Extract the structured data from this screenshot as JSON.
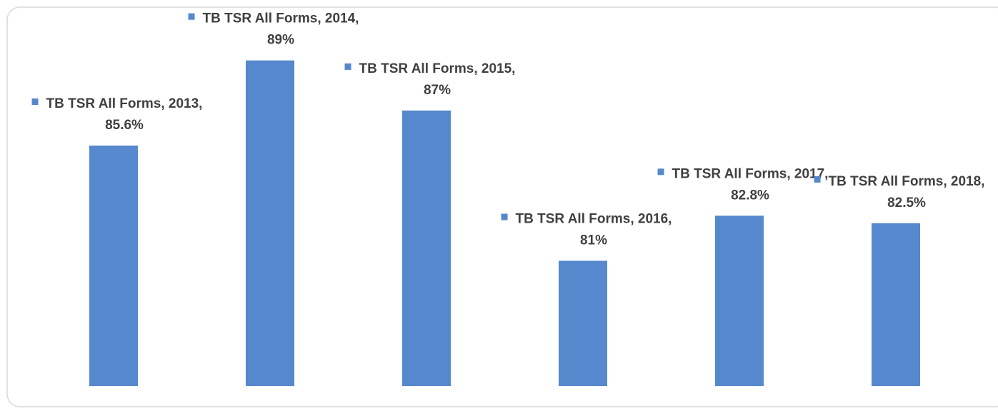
{
  "chart_data": {
    "type": "bar",
    "series": [
      {
        "name": "TB TSR All Forms",
        "color": "#5588cc",
        "values": [
          85.6,
          89,
          87,
          81,
          82.8,
          82.5
        ],
        "value_labels": [
          "85.6%",
          "89%",
          "87%",
          "81%",
          "82.8%",
          "82.5%"
        ],
        "data_labels": [
          "TB TSR All Forms, 2013,",
          "TB TSR All Forms, 2014,",
          "TB TSR All Forms, 2015,",
          "TB TSR All Forms, 2016,",
          "TB TSR All Forms, 2017,",
          "TB TSR All Forms, 2018,"
        ]
      }
    ],
    "ylim": [
      76,
      91
    ]
  }
}
